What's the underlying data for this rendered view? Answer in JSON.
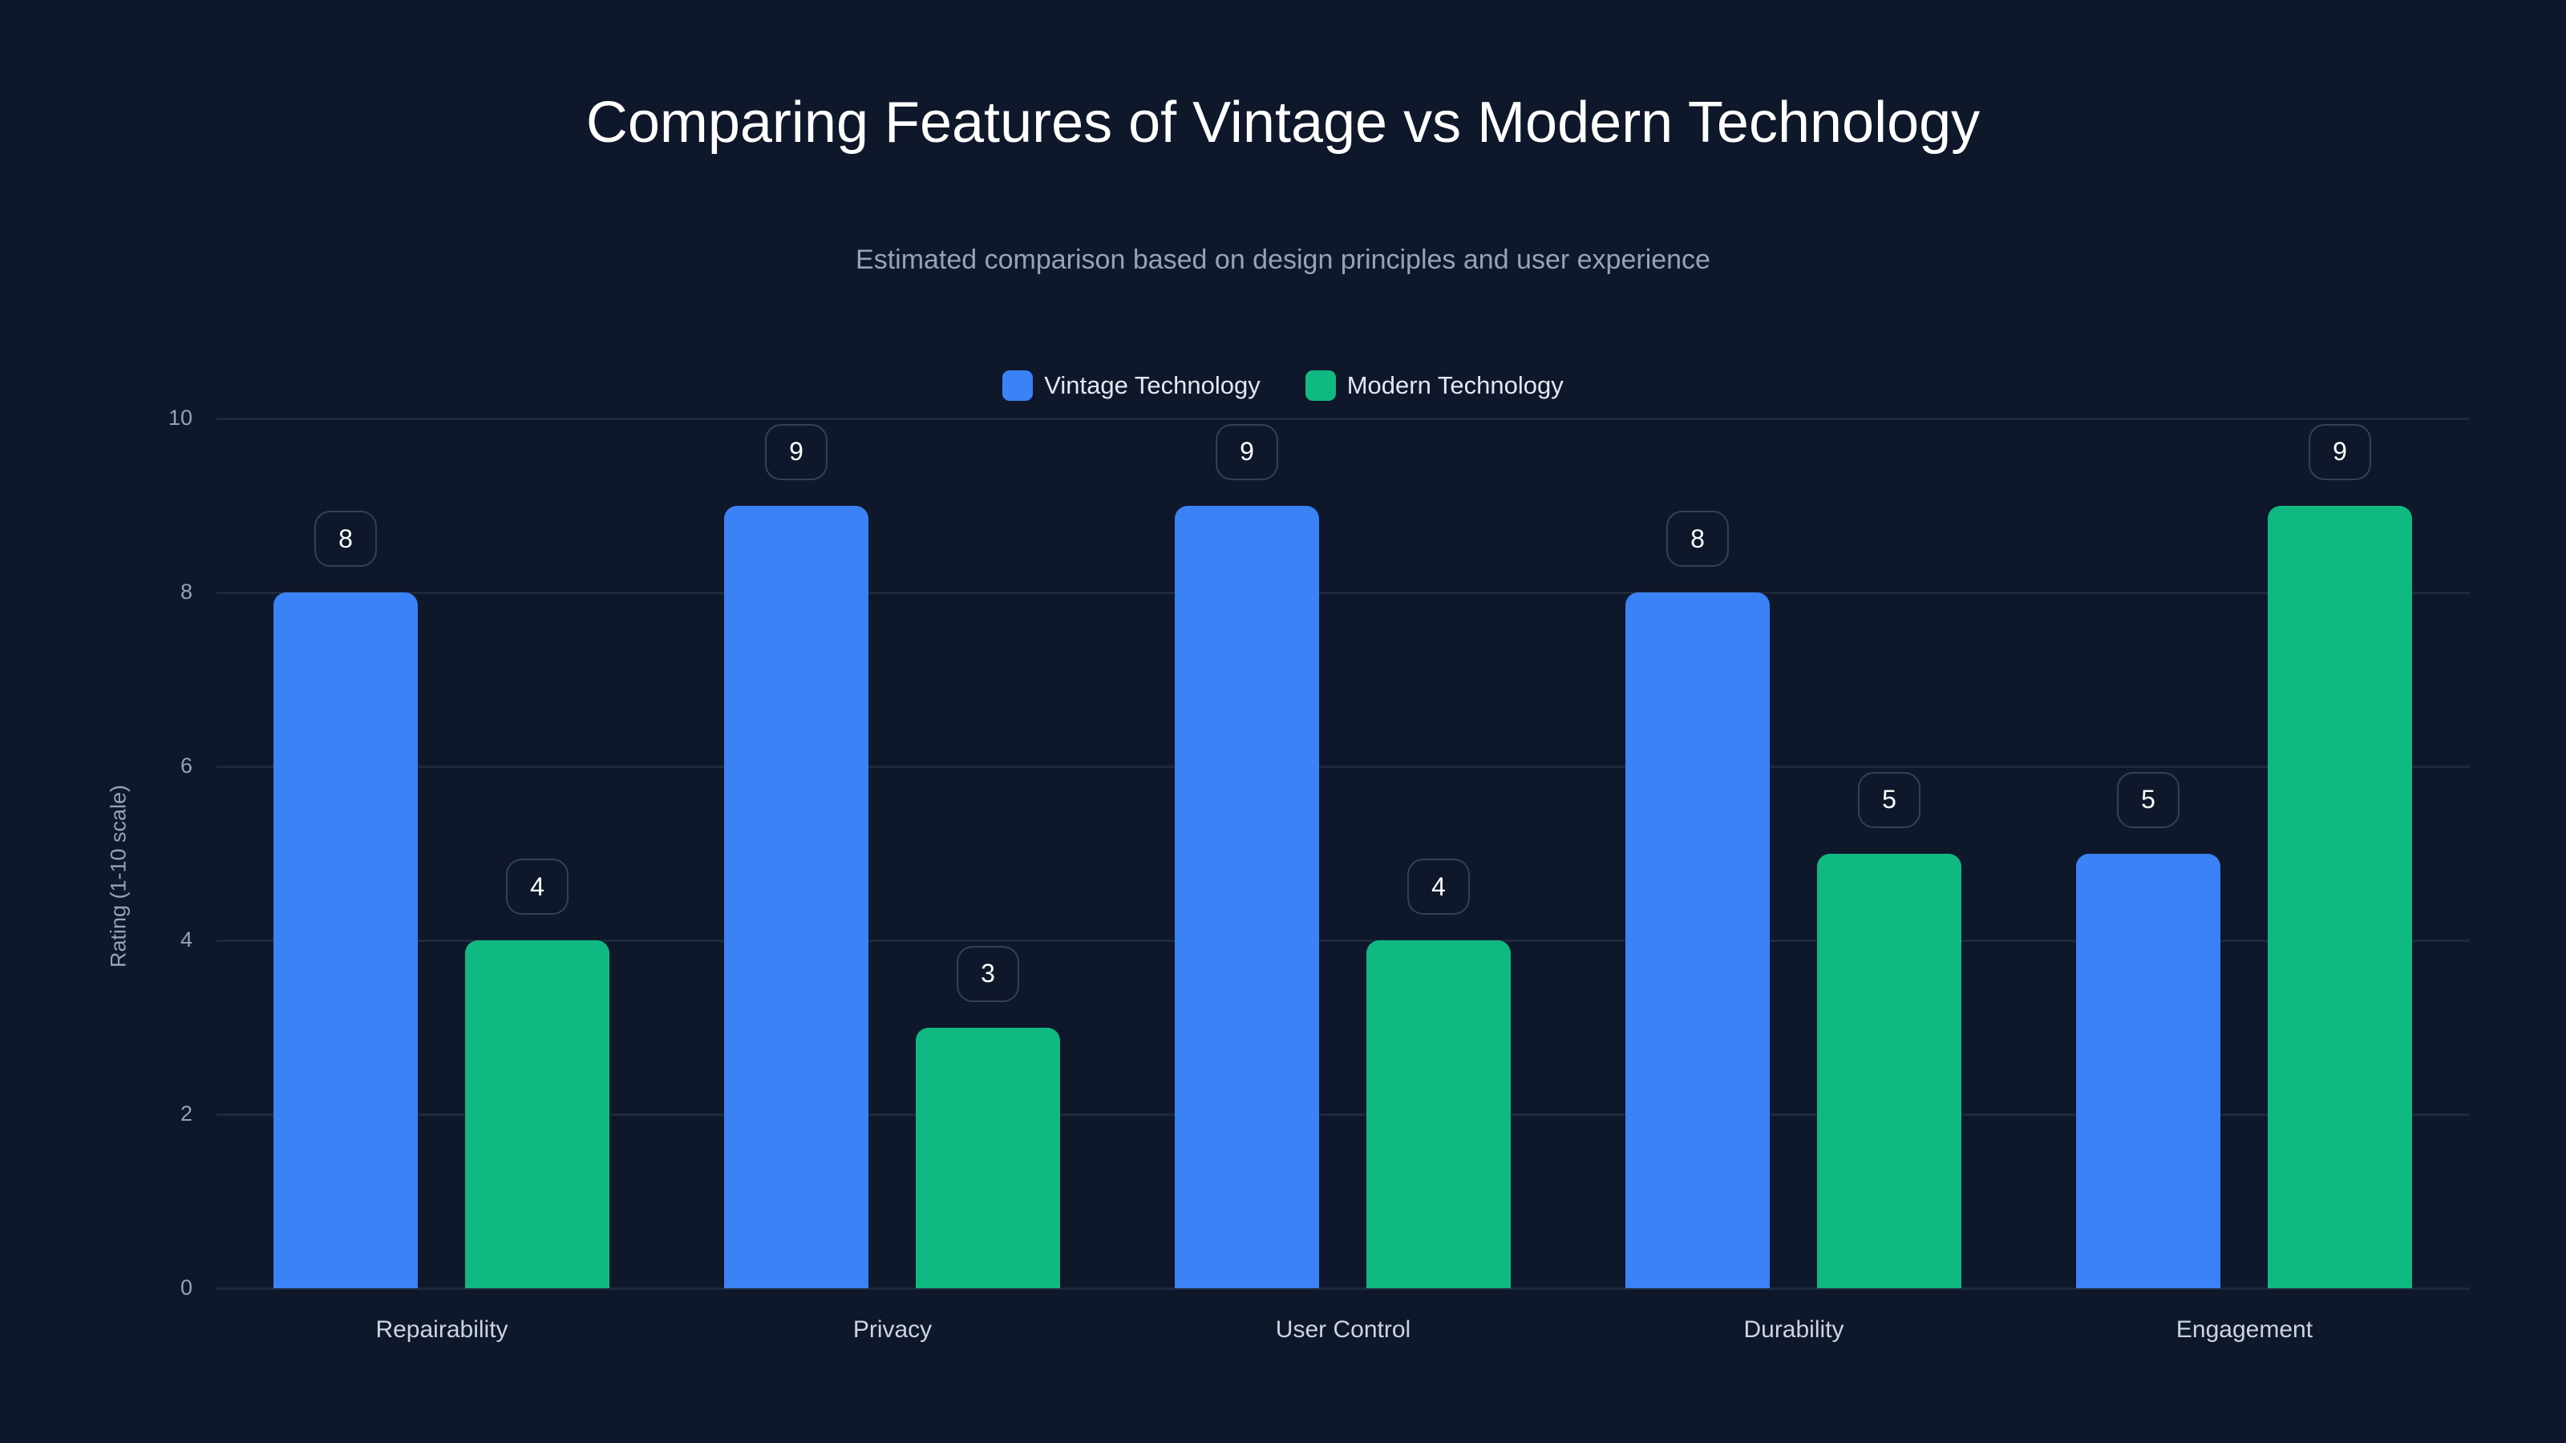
{
  "header": {
    "title": "Comparing Features of Vintage vs Modern Technology",
    "subtitle": "Estimated comparison based on design principles and user experience"
  },
  "legend": [
    {
      "label": "Vintage Technology",
      "color": "#3b82f6"
    },
    {
      "label": "Modern Technology",
      "color": "#10b981"
    }
  ],
  "axes": {
    "ylabel": "Rating (1-10 scale)",
    "yticks": [
      "0",
      "2",
      "4",
      "6",
      "8",
      "10"
    ]
  },
  "chart_data": {
    "type": "bar",
    "title": "Comparing Features of Vintage vs Modern Technology",
    "subtitle": "Estimated comparison based on design principles and user experience",
    "categories": [
      "Repairability",
      "Privacy",
      "User Control",
      "Durability",
      "Engagement"
    ],
    "series": [
      {
        "name": "Vintage Technology",
        "color": "#3b82f6",
        "values": [
          8,
          9,
          9,
          8,
          5
        ]
      },
      {
        "name": "Modern Technology",
        "color": "#10b981",
        "values": [
          4,
          3,
          4,
          5,
          9
        ]
      }
    ],
    "xlabel": "",
    "ylabel": "Rating (1-10 scale)",
    "ylim": [
      0,
      10
    ],
    "yticks": [
      0,
      2,
      4,
      6,
      8,
      10
    ],
    "grid": true,
    "legend_position": "top",
    "data_labels": true
  },
  "colors": {
    "background": "#0f172a",
    "grid": "#1e293b",
    "vintage": "#3b82f6",
    "modern": "#10b981"
  }
}
